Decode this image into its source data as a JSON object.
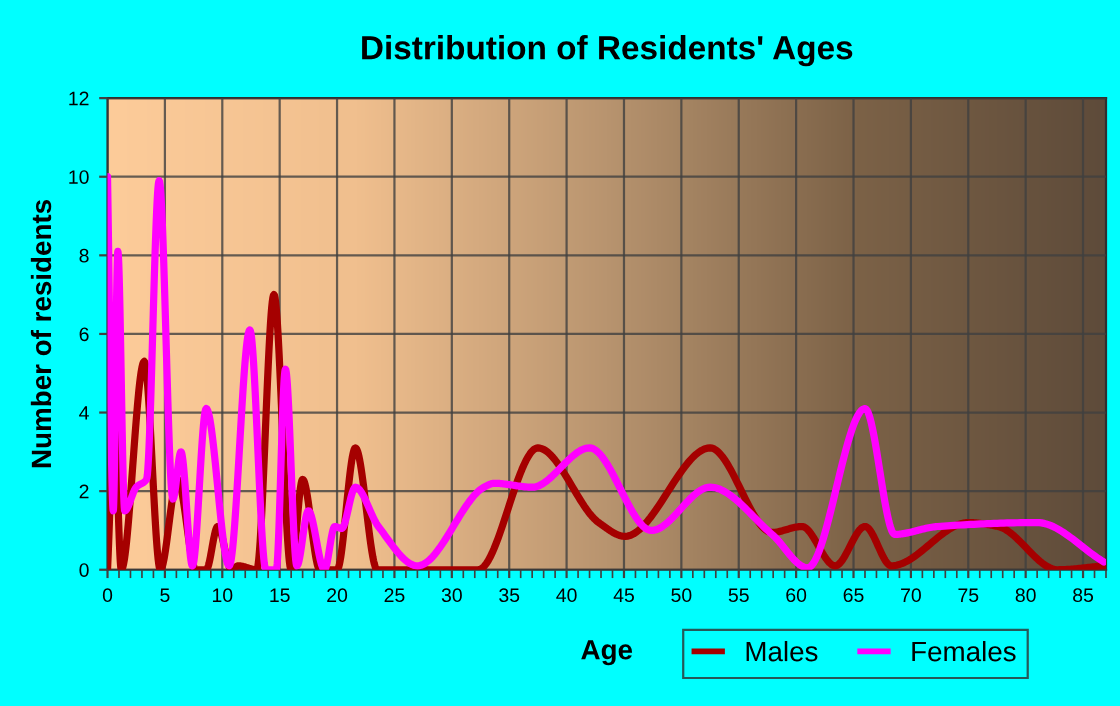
{
  "chart_data": {
    "type": "line",
    "title": "Distribution of Residents' Ages",
    "xlabel": "Age",
    "ylabel": "Number of residents",
    "xlim": [
      0,
      87
    ],
    "ylim": [
      0,
      12
    ],
    "xticks": [
      0,
      5,
      10,
      15,
      20,
      25,
      30,
      35,
      40,
      45,
      50,
      55,
      60,
      65,
      70,
      75,
      80,
      85
    ],
    "yticks": [
      0,
      2,
      4,
      6,
      8,
      10,
      12
    ],
    "grid": true,
    "legend": "bottom right",
    "marker": "none",
    "line_style": "solid",
    "series": [
      {
        "name": "Males",
        "color": "#a50000",
        "x": [
          0,
          0.6,
          1.2,
          3.2,
          4.6,
          6.1,
          7.7,
          8.6,
          9.6,
          10.8,
          11.4,
          13,
          14.5,
          16,
          17,
          18.5,
          20,
          21.6,
          23.5,
          32.3,
          37.5,
          42.8,
          45.1,
          52.5,
          57.9,
          60.5,
          63.4,
          66,
          68.3,
          75,
          77.6,
          82.8,
          86.8
        ],
        "values": [
          0,
          3.7,
          0,
          5.3,
          0,
          2.3,
          0,
          0,
          1.1,
          0,
          0.1,
          0,
          7,
          0,
          2.3,
          0,
          0,
          3.1,
          0,
          0,
          3.1,
          1.2,
          0.85,
          3.1,
          0.95,
          1.1,
          0.1,
          1.1,
          0.1,
          1.2,
          1.1,
          0,
          0.1
        ]
      },
      {
        "name": "Females",
        "color": "#ff00ff",
        "x": [
          0,
          0.5,
          0.9,
          1.5,
          2.5,
          3.4,
          4.5,
          5.7,
          6.4,
          7.4,
          8.6,
          10.6,
          12.4,
          13.8,
          14.7,
          15.5,
          16.5,
          17.5,
          18.9,
          19.8,
          20.4,
          21.6,
          23.6,
          27,
          32.8,
          33.7,
          37,
          42,
          47.4,
          52.5,
          57.9,
          61,
          66,
          68.6,
          72.3,
          81,
          86.8
        ],
        "values": [
          10,
          1.5,
          8.1,
          1.5,
          2.1,
          2.3,
          9.9,
          1.8,
          3,
          0.1,
          4.1,
          0.1,
          6.1,
          0,
          0,
          5.1,
          0.1,
          1.5,
          0,
          1.1,
          1.05,
          2.1,
          1.1,
          0.1,
          2.1,
          2.2,
          2.1,
          3.1,
          1,
          2.1,
          0.9,
          0.05,
          4.1,
          0.9,
          1.1,
          1.2,
          0.2
        ]
      }
    ]
  }
}
